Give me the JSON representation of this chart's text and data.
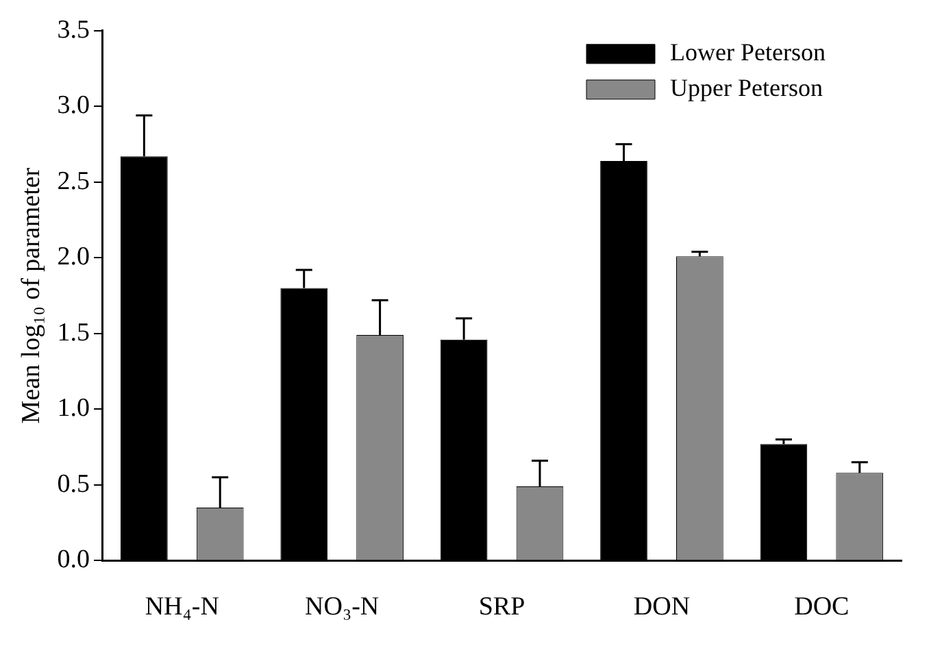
{
  "chart_data": {
    "type": "bar",
    "ylabel": "Mean log₁₀ of parameter",
    "categories": [
      "NH₄-N",
      "NO₃-N",
      "SRP",
      "DON",
      "DOC"
    ],
    "series": [
      {
        "name": "Lower Peterson",
        "color": "#000000",
        "values": [
          2.67,
          1.8,
          1.46,
          2.64,
          0.77
        ],
        "errors": [
          [
            2.67,
            2.94
          ],
          [
            1.8,
            1.92
          ],
          [
            1.46,
            1.6
          ],
          [
            2.64,
            2.75
          ],
          [
            0.77,
            0.8
          ]
        ]
      },
      {
        "name": "Upper Peterson",
        "color": "#888888",
        "values": [
          0.35,
          1.49,
          0.49,
          2.01,
          0.58
        ],
        "errors": [
          [
            0.35,
            0.55
          ],
          [
            1.49,
            1.72
          ],
          [
            0.49,
            0.66
          ],
          [
            2.01,
            2.04
          ],
          [
            0.58,
            0.65
          ]
        ]
      }
    ],
    "ylim": [
      0,
      3.5
    ],
    "yticks": [
      {
        "value": 0,
        "label": "0.0"
      },
      {
        "value": 0.5,
        "label": "0.5"
      },
      {
        "value": 1,
        "label": "1.0"
      },
      {
        "value": 1.5,
        "label": "1.5"
      },
      {
        "value": 2,
        "label": "2.0"
      },
      {
        "value": 2.5,
        "label": "2.5"
      },
      {
        "value": 3,
        "label": "3.0"
      },
      {
        "value": 3.5,
        "label": "3.5"
      }
    ],
    "grid": false,
    "legend": "top right"
  }
}
